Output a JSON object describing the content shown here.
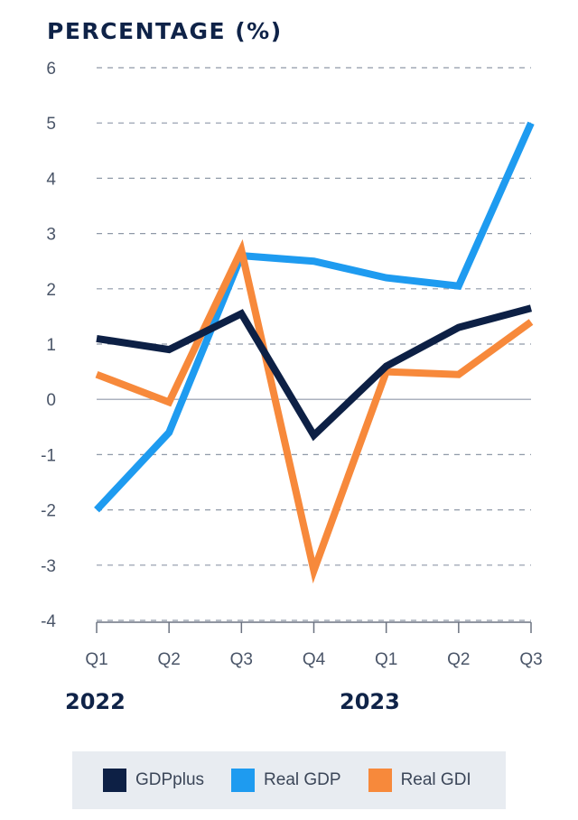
{
  "chart_data": {
    "type": "line",
    "title": "PERCENTAGE (%)",
    "xlabel": "",
    "ylabel": "",
    "ylim": [
      -4,
      6
    ],
    "yticks": [
      6,
      5,
      4,
      3,
      2,
      1,
      0,
      -1,
      -2,
      -3,
      -4
    ],
    "categories": [
      "Q1",
      "Q2",
      "Q3",
      "Q4",
      "Q1",
      "Q2",
      "Q3"
    ],
    "year_labels": [
      "2022",
      "2023"
    ],
    "grid": "dashed horizontal",
    "legend_position": "bottom",
    "series": [
      {
        "name": "GDPplus",
        "color": "#0d2045",
        "values": [
          1.1,
          0.9,
          1.55,
          -0.65,
          0.6,
          1.3,
          1.65
        ]
      },
      {
        "name": "Real GDP",
        "color": "#1e9bf0",
        "values": [
          -2.0,
          -0.6,
          2.6,
          2.5,
          2.2,
          2.05,
          5.0
        ]
      },
      {
        "name": "Real GDI",
        "color": "#f7893b",
        "values": [
          0.45,
          -0.05,
          2.7,
          -3.1,
          0.5,
          0.45,
          1.4
        ]
      }
    ]
  }
}
